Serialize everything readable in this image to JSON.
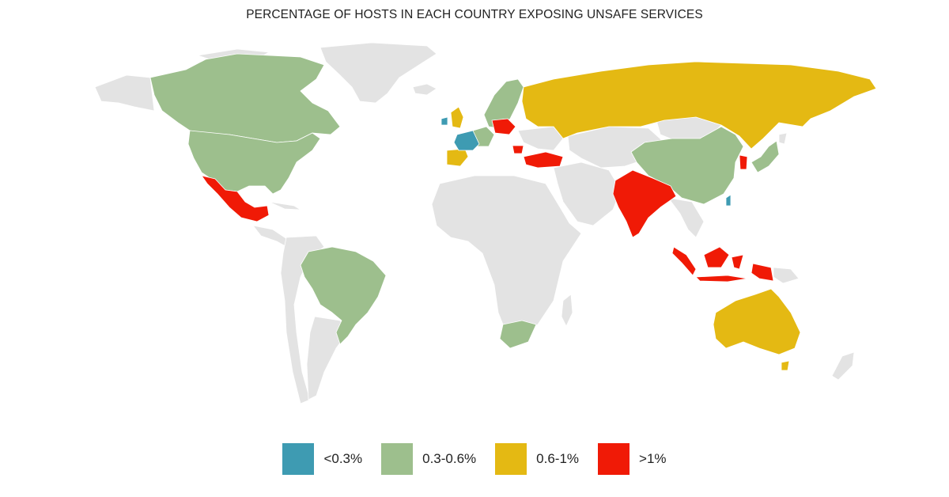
{
  "title": "PERCENTAGE OF HOSTS IN EACH COUNTRY EXPOSING UNSAFE SERVICES",
  "colors": {
    "background_land": "#e3e3e3",
    "border": "#ffffff",
    "lt_0_3": "#3e9bb2",
    "0_3_0_6": "#9dbf8d",
    "0_6_1": "#e4b913",
    "gt_1": "#f01a06"
  },
  "legend": [
    {
      "key": "lt_0_3",
      "label": "<0.3%"
    },
    {
      "key": "0_3_0_6",
      "label": "0.3-0.6%"
    },
    {
      "key": "0_6_1",
      "label": "0.6-1%"
    },
    {
      "key": "gt_1",
      "label": ">1%"
    }
  ]
}
